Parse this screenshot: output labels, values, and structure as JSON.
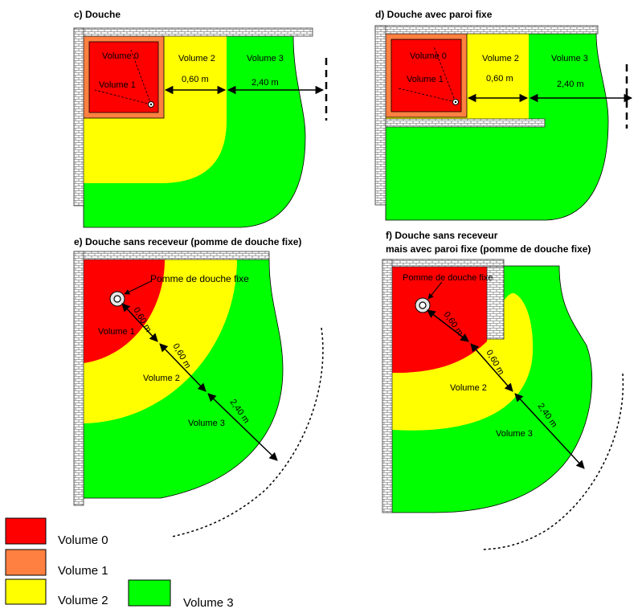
{
  "colors": {
    "volume0": "#ff0000",
    "volume1": "#ff8040",
    "volume2": "#ffff00",
    "volume3": "#00ff00",
    "wall": "#ffffff"
  },
  "panels": {
    "c": {
      "title": "c) Douche",
      "volume0": "Volume 0",
      "volume1": "Volume 1",
      "volume2": "Volume 2",
      "volume3": "Volume 3",
      "dist1": "0,60 m",
      "dist2": "2,40 m"
    },
    "d": {
      "title": "d) Douche avec paroi fixe",
      "volume0": "Volume 0",
      "volume1": "Volume 1",
      "volume2": "Volume 2",
      "volume3": "Volume 3",
      "dist1": "0,60 m",
      "dist2": "2,40 m"
    },
    "e": {
      "title": "e) Douche sans receveur (pomme de douche fixe)",
      "head": "Pomme de douche fixe",
      "volume1": "Volume 1",
      "volume2": "Volume 2",
      "volume3": "Volume 3",
      "dist0": "0,60 m",
      "dist1": "0,60 m",
      "dist2": "2,40 m"
    },
    "f": {
      "title1": "f) Douche sans receveur",
      "title2": "mais avec paroi fixe (pomme de douche fixe)",
      "head": "Pomme de douche fixe",
      "volume2": "Volume 2",
      "volume3": "Volume 3",
      "dist0": "0,60 m",
      "dist1": "0,60 m",
      "dist2": "2,40 m"
    }
  },
  "legend": {
    "items": [
      "Volume 0",
      "Volume 1",
      "Volume 2",
      "Volume 3"
    ]
  }
}
